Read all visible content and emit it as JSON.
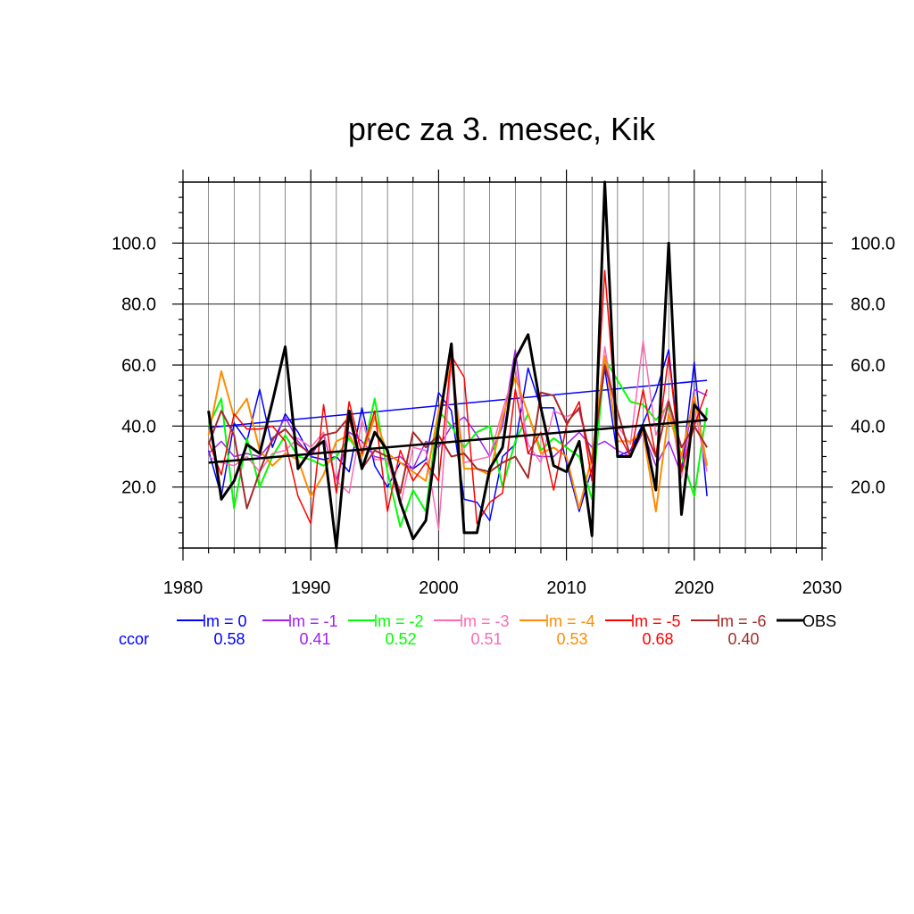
{
  "chart_data": {
    "type": "line",
    "title": "prec za 3. mesec, Kik",
    "xlabel": "",
    "ylabel": "",
    "xlim": [
      1980,
      2030
    ],
    "ylim": [
      0,
      120
    ],
    "x_ticks": [
      1980,
      1990,
      2000,
      2010,
      2020,
      2030
    ],
    "x_tick_labels": [
      "1980",
      "1990",
      "2000",
      "2010",
      "2020",
      "2030"
    ],
    "y_ticks": [
      20,
      40,
      60,
      80,
      100
    ],
    "y_tick_labels": [
      "20.0",
      "40.0",
      "60.0",
      "80.0",
      "100.0"
    ],
    "grid": true,
    "legend_position": "bottom",
    "ccor_label": "ccor",
    "x": [
      1982,
      1983,
      1984,
      1985,
      1986,
      1987,
      1988,
      1989,
      1990,
      1991,
      1992,
      1993,
      1994,
      1995,
      1996,
      1997,
      1998,
      1999,
      2000,
      2001,
      2002,
      2003,
      2004,
      2005,
      2006,
      2007,
      2008,
      2009,
      2010,
      2011,
      2012,
      2013,
      2014,
      2015,
      2016,
      2017,
      2018,
      2019,
      2020,
      2021
    ],
    "series": [
      {
        "name": "lm = 0",
        "color": "#0000ff",
        "ccor": "0.58",
        "width": 1.5,
        "values": [
          32,
          17,
          41,
          35,
          52,
          33,
          44,
          38,
          30,
          29,
          30,
          25,
          46,
          27,
          20,
          28,
          26,
          29,
          51,
          45,
          16,
          15,
          9,
          30,
          34,
          59,
          46,
          46,
          28,
          12,
          26,
          59,
          30,
          32,
          41,
          51,
          65,
          25,
          61,
          17
        ],
        "trend": [
          39.5,
          55
        ]
      },
      {
        "name": "lm = -1",
        "color": "#a020f0",
        "ccor": "0.41",
        "width": 1.5,
        "values": [
          31,
          35,
          30,
          31,
          30,
          35,
          43,
          35,
          30,
          37,
          22,
          38,
          35,
          30,
          29,
          30,
          26,
          35,
          33,
          40,
          43,
          37,
          30,
          40,
          65,
          31,
          30,
          30,
          34,
          38,
          33,
          35,
          32,
          30,
          38,
          27,
          35,
          24,
          52,
          50
        ]
      },
      {
        "name": "lm = -2",
        "color": "#00ff00",
        "ccor": "0.52",
        "width": 2,
        "values": [
          40,
          49,
          13,
          36,
          20,
          30,
          37,
          30,
          29,
          27,
          30,
          36,
          30,
          49,
          25,
          7,
          19,
          12,
          45,
          40,
          33,
          38,
          40,
          20,
          35,
          44,
          32,
          36,
          33,
          30,
          16,
          62,
          55,
          48,
          47,
          42,
          47,
          30,
          17,
          46
        ]
      },
      {
        "name": "lm = -3",
        "color": "#ff69b4",
        "ccor": "0.51",
        "width": 1.5,
        "values": [
          30,
          28,
          27,
          30,
          25,
          31,
          32,
          36,
          33,
          38,
          22,
          18,
          42,
          29,
          29,
          14,
          33,
          32,
          6,
          62,
          28,
          29,
          30,
          45,
          59,
          34,
          28,
          45,
          43,
          45,
          27,
          66,
          40,
          34,
          68,
          37,
          49,
          23,
          46,
          25
        ]
      },
      {
        "name": "lm = -4",
        "color": "#ff8c00",
        "ccor": "0.53",
        "width": 2,
        "values": [
          37,
          58,
          43,
          49,
          32,
          27,
          31,
          29,
          17,
          24,
          35,
          37,
          30,
          43,
          31,
          28,
          25,
          22,
          45,
          60,
          26,
          26,
          24,
          43,
          56,
          44,
          31,
          33,
          30,
          13,
          30,
          63,
          35,
          35,
          38,
          12,
          44,
          30,
          50,
          27
        ]
      },
      {
        "name": "lm = -5",
        "color": "#ff0000",
        "ccor": "0.68",
        "width": 1.5,
        "values": [
          35,
          24,
          44,
          39,
          39,
          40,
          35,
          17,
          8,
          47,
          18,
          48,
          31,
          45,
          12,
          32,
          22,
          28,
          22,
          63,
          56,
          8,
          15,
          18,
          52,
          31,
          38,
          19,
          40,
          48,
          22,
          91,
          38,
          30,
          52,
          30,
          63,
          25,
          40,
          52
        ]
      },
      {
        "name": "lm = -6",
        "color": "#a52a2a",
        "ccor": "0.40",
        "width": 2,
        "values": [
          34,
          45,
          37,
          13,
          25,
          36,
          39,
          34,
          31,
          37,
          38,
          43,
          26,
          32,
          30,
          18,
          38,
          33,
          37,
          30,
          31,
          26,
          25,
          28,
          30,
          23,
          51,
          50,
          41,
          46,
          28,
          60,
          45,
          30,
          40,
          30,
          48,
          33,
          40,
          33
        ]
      },
      {
        "name": "OBS",
        "color": "#000000",
        "ccor": "",
        "width": 3,
        "values": [
          45,
          16,
          22,
          34,
          31,
          48,
          66,
          26,
          32,
          35,
          0,
          45,
          26,
          38,
          32,
          15,
          3,
          9,
          40,
          67,
          5,
          5,
          26,
          33,
          62,
          70,
          46,
          27,
          25,
          35,
          4,
          120,
          30,
          30,
          40,
          19,
          100,
          11,
          47,
          42
        ],
        "trend": [
          28,
          42
        ]
      }
    ]
  }
}
